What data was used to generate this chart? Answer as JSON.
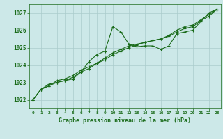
{
  "title": "Graphe pression niveau de la mer (hPa)",
  "bg_color": "#cce8e8",
  "grid_color": "#aacccc",
  "line_color": "#1a6b1a",
  "xlim": [
    -0.5,
    23.5
  ],
  "ylim": [
    1021.5,
    1027.5
  ],
  "yticks": [
    1022,
    1023,
    1024,
    1025,
    1026,
    1027
  ],
  "xticks": [
    0,
    1,
    2,
    3,
    4,
    5,
    6,
    7,
    8,
    9,
    10,
    11,
    12,
    13,
    14,
    15,
    16,
    17,
    18,
    19,
    20,
    21,
    22,
    23
  ],
  "series1": [
    1022.0,
    1022.6,
    1022.8,
    1023.0,
    1023.1,
    1023.2,
    1023.6,
    1024.2,
    1024.6,
    1024.8,
    1026.2,
    1025.9,
    1025.2,
    1025.05,
    1025.1,
    1025.1,
    1024.9,
    1025.1,
    1025.8,
    1025.9,
    1026.0,
    1026.5,
    1027.0,
    1027.2
  ],
  "series2": [
    1022.0,
    1022.6,
    1022.8,
    1023.1,
    1023.2,
    1023.4,
    1023.7,
    1023.9,
    1024.1,
    1024.4,
    1024.7,
    1024.9,
    1025.1,
    1025.2,
    1025.3,
    1025.4,
    1025.5,
    1025.7,
    1026.0,
    1026.2,
    1026.3,
    1026.6,
    1026.9,
    1027.2
  ],
  "series3": [
    1022.0,
    1022.6,
    1022.9,
    1023.0,
    1023.1,
    1023.3,
    1023.6,
    1023.8,
    1024.1,
    1024.3,
    1024.6,
    1024.8,
    1025.0,
    1025.15,
    1025.3,
    1025.4,
    1025.5,
    1025.65,
    1025.9,
    1026.1,
    1026.2,
    1026.55,
    1026.8,
    1027.2
  ]
}
